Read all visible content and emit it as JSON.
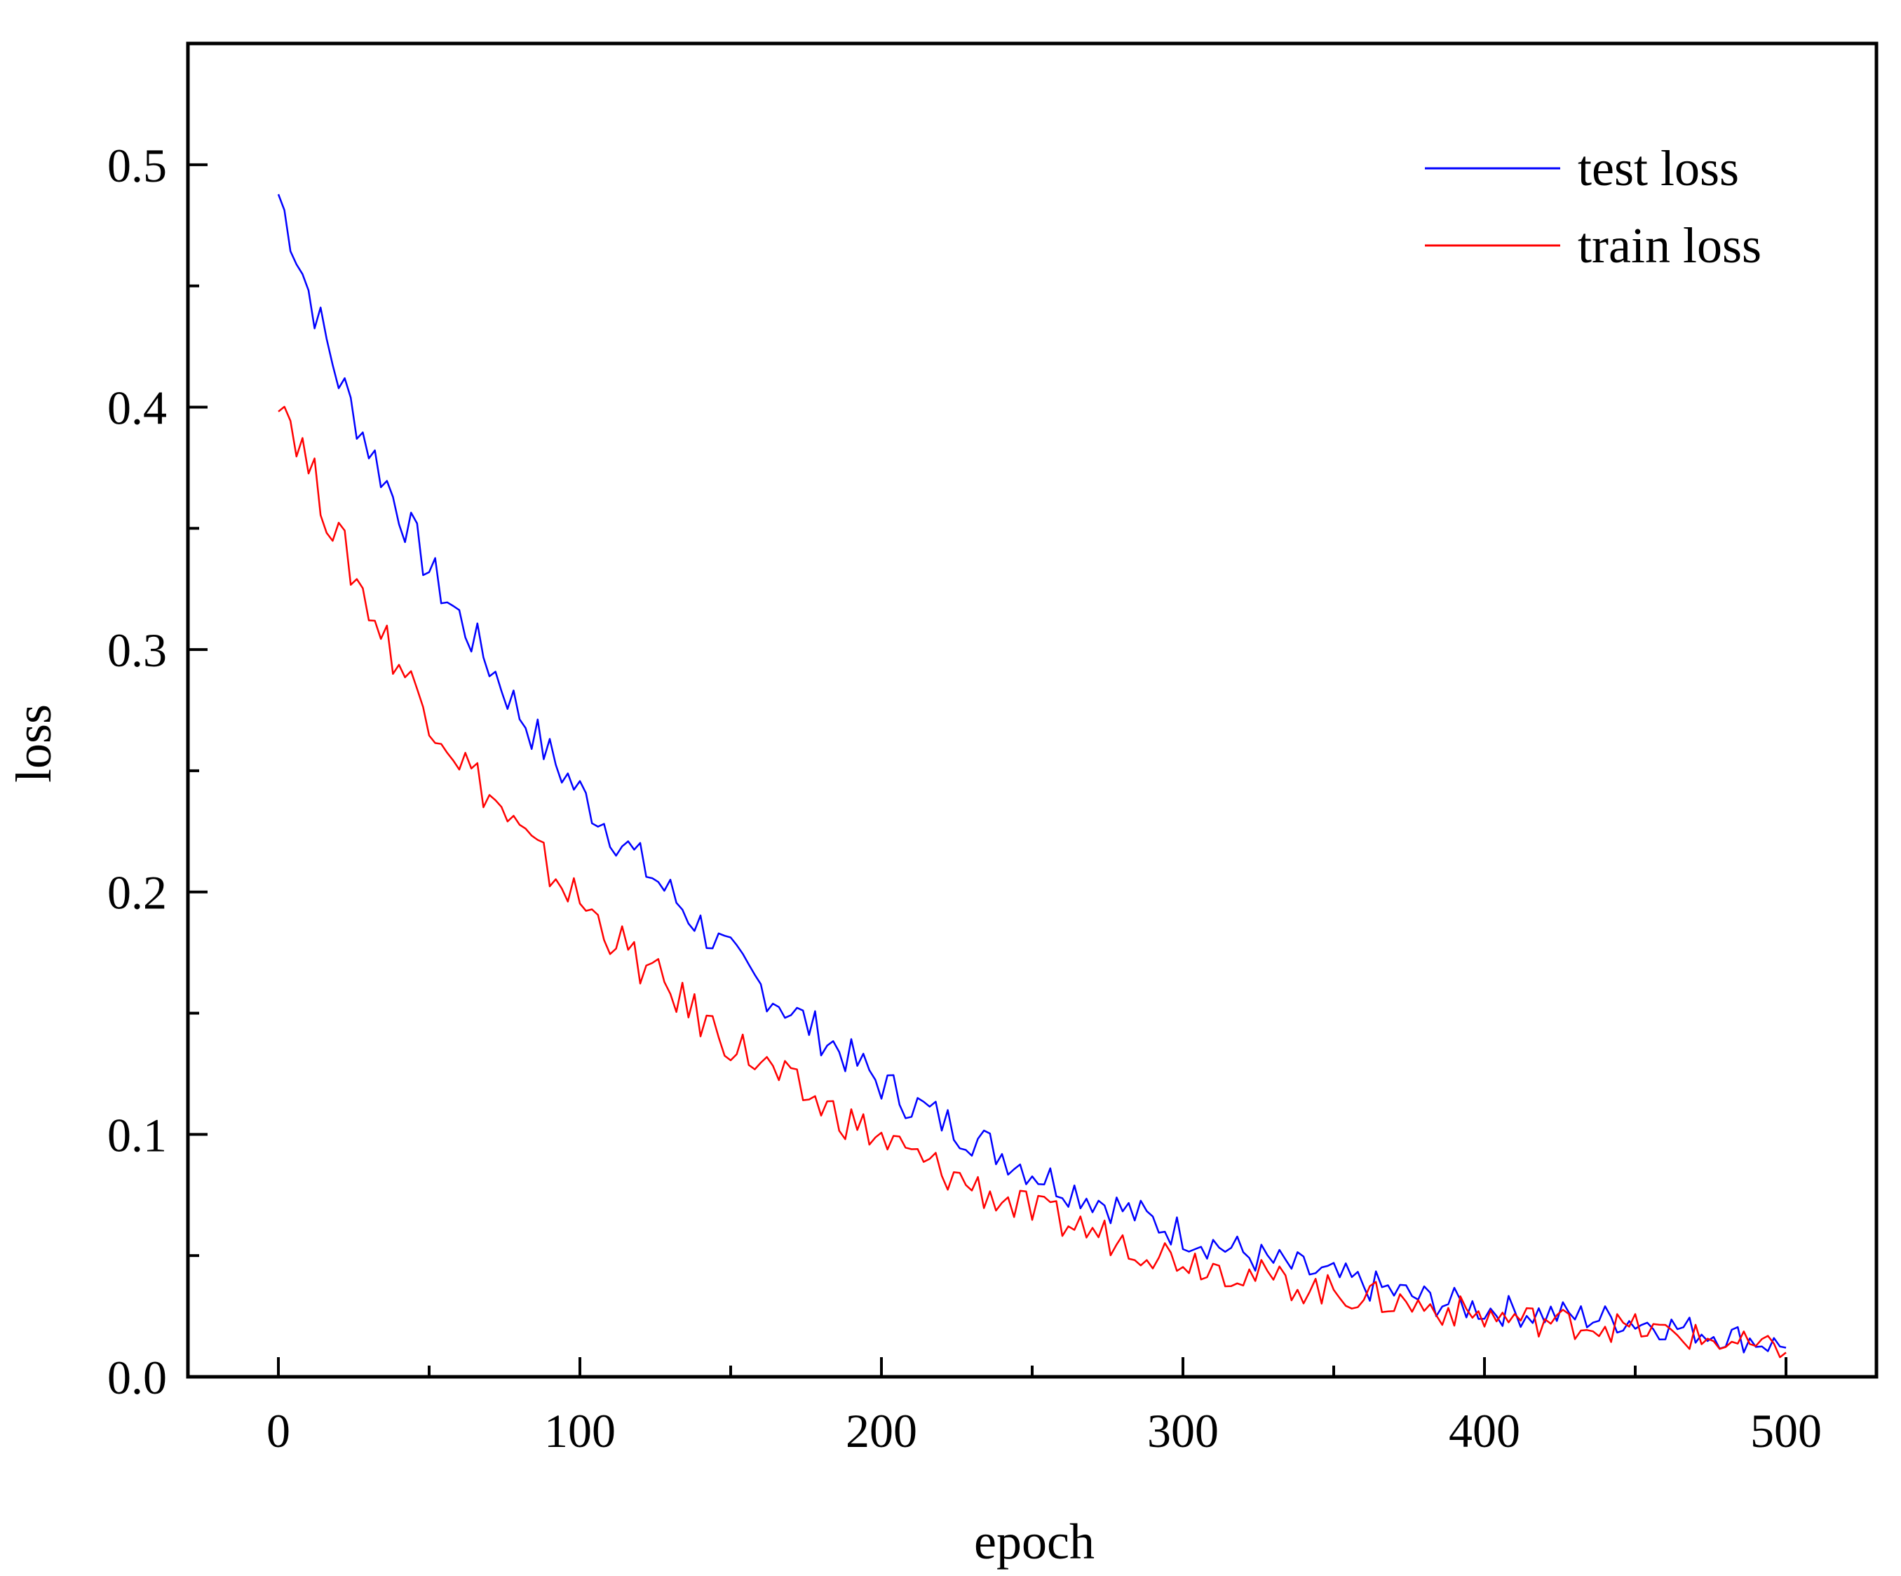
{
  "chart_data": {
    "type": "line",
    "title": "",
    "xlabel": "epoch",
    "ylabel": "loss",
    "xlim": [
      -30,
      530
    ],
    "ylim": [
      0.0,
      0.55
    ],
    "x_ticks": [
      0,
      100,
      200,
      300,
      400,
      500
    ],
    "y_ticks": [
      0.0,
      0.1,
      0.2,
      0.3,
      0.4,
      0.5
    ],
    "x_tick_labels": [
      "0",
      "100",
      "200",
      "300",
      "400",
      "500"
    ],
    "y_tick_labels": [
      "0.0",
      "0.1",
      "0.2",
      "0.3",
      "0.4",
      "0.5"
    ],
    "grid": false,
    "legend_position": "top-right",
    "series": [
      {
        "name": "test loss",
        "color": "#0000ff",
        "x": [
          0,
          10,
          20,
          30,
          40,
          50,
          60,
          70,
          80,
          90,
          100,
          110,
          120,
          130,
          140,
          150,
          160,
          170,
          180,
          190,
          200,
          210,
          220,
          230,
          240,
          250,
          260,
          270,
          280,
          290,
          300,
          310,
          320,
          330,
          340,
          350,
          360,
          370,
          380,
          390,
          400,
          410,
          420,
          430,
          440,
          450,
          460,
          470,
          480,
          490,
          500
        ],
        "values": [
          0.488,
          0.448,
          0.412,
          0.384,
          0.358,
          0.333,
          0.313,
          0.294,
          0.274,
          0.256,
          0.241,
          0.226,
          0.212,
          0.199,
          0.186,
          0.173,
          0.161,
          0.151,
          0.141,
          0.131,
          0.121,
          0.113,
          0.106,
          0.099,
          0.092,
          0.085,
          0.079,
          0.074,
          0.069,
          0.064,
          0.059,
          0.055,
          0.051,
          0.047,
          0.044,
          0.041,
          0.038,
          0.035,
          0.032,
          0.03,
          0.028,
          0.027,
          0.026,
          0.025,
          0.024,
          0.023,
          0.021,
          0.019,
          0.017,
          0.015,
          0.012
        ]
      },
      {
        "name": "train loss",
        "color": "#ff0000",
        "x": [
          0,
          10,
          20,
          30,
          40,
          50,
          60,
          70,
          80,
          90,
          100,
          110,
          120,
          130,
          140,
          150,
          160,
          170,
          180,
          190,
          200,
          210,
          220,
          230,
          240,
          250,
          260,
          270,
          280,
          290,
          300,
          310,
          320,
          330,
          340,
          350,
          360,
          370,
          380,
          390,
          400,
          410,
          420,
          430,
          440,
          450,
          460,
          470,
          480,
          490,
          500
        ],
        "values": [
          0.408,
          0.376,
          0.345,
          0.318,
          0.294,
          0.274,
          0.256,
          0.24,
          0.224,
          0.209,
          0.196,
          0.183,
          0.17,
          0.159,
          0.148,
          0.138,
          0.129,
          0.12,
          0.112,
          0.105,
          0.098,
          0.091,
          0.085,
          0.079,
          0.073,
          0.068,
          0.064,
          0.06,
          0.056,
          0.052,
          0.049,
          0.046,
          0.043,
          0.04,
          0.037,
          0.035,
          0.033,
          0.031,
          0.029,
          0.027,
          0.025,
          0.024,
          0.023,
          0.022,
          0.021,
          0.02,
          0.018,
          0.016,
          0.014,
          0.012,
          0.01
        ]
      }
    ]
  }
}
